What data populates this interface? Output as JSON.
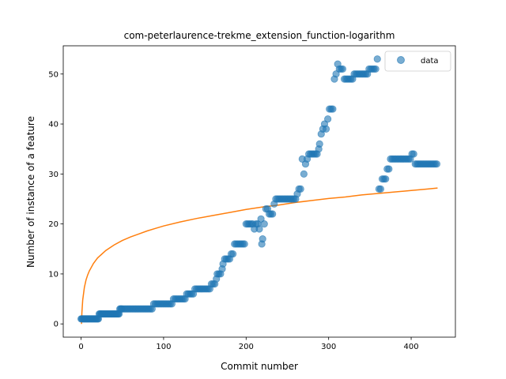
{
  "chart_data": {
    "type": "scatter",
    "title": "com-peterlaurence-trekme_extension_function-logarithm",
    "xlabel": "Commit number",
    "ylabel": "Number of instance of a feature",
    "xlim": [
      -21.6,
      453.6
    ],
    "ylim": [
      -2.65,
      55.65
    ],
    "xticks": [
      0,
      100,
      200,
      300,
      400
    ],
    "yticks": [
      0,
      10,
      20,
      30,
      40,
      50
    ],
    "legend": {
      "position": "top-right",
      "entries": [
        "data"
      ]
    },
    "colors": {
      "data": "#1f77b4",
      "fit": "#ff7f0e"
    },
    "series": [
      {
        "name": "data",
        "kind": "scatter",
        "segments": [
          [
            0,
            1
          ],
          [
            1,
            1
          ],
          [
            2,
            1
          ],
          [
            3,
            1
          ],
          [
            4,
            1
          ],
          [
            5,
            1
          ],
          [
            6,
            1
          ],
          [
            7,
            1
          ],
          [
            8,
            1
          ],
          [
            9,
            1
          ],
          [
            10,
            1
          ],
          [
            11,
            1
          ],
          [
            12,
            1
          ],
          [
            13,
            1
          ],
          [
            14,
            1
          ],
          [
            15,
            1
          ],
          [
            16,
            1
          ],
          [
            17,
            1
          ],
          [
            18,
            1
          ],
          [
            19,
            1
          ],
          [
            20,
            1
          ],
          [
            21,
            1
          ],
          [
            22,
            2
          ],
          [
            23,
            2
          ],
          [
            24,
            2
          ],
          [
            25,
            2
          ],
          [
            26,
            2
          ],
          [
            27,
            2
          ],
          [
            28,
            2
          ],
          [
            29,
            2
          ],
          [
            30,
            2
          ],
          [
            31,
            2
          ],
          [
            32,
            2
          ],
          [
            33,
            2
          ],
          [
            34,
            2
          ],
          [
            35,
            2
          ],
          [
            36,
            2
          ],
          [
            37,
            2
          ],
          [
            38,
            2
          ],
          [
            39,
            2
          ],
          [
            40,
            2
          ],
          [
            41,
            2
          ],
          [
            42,
            2
          ],
          [
            43,
            2
          ],
          [
            44,
            2
          ],
          [
            45,
            2
          ],
          [
            46,
            2
          ],
          [
            47,
            3
          ],
          [
            48,
            3
          ],
          [
            49,
            3
          ],
          [
            50,
            3
          ],
          [
            52,
            3
          ],
          [
            54,
            3
          ],
          [
            56,
            3
          ],
          [
            58,
            3
          ],
          [
            60,
            3
          ],
          [
            62,
            3
          ],
          [
            64,
            3
          ],
          [
            66,
            3
          ],
          [
            68,
            3
          ],
          [
            70,
            3
          ],
          [
            72,
            3
          ],
          [
            74,
            3
          ],
          [
            76,
            3
          ],
          [
            78,
            3
          ],
          [
            80,
            3
          ],
          [
            82,
            3
          ],
          [
            84,
            3
          ],
          [
            86,
            3
          ],
          [
            88,
            4
          ],
          [
            90,
            4
          ],
          [
            92,
            4
          ],
          [
            94,
            4
          ],
          [
            96,
            4
          ],
          [
            98,
            4
          ],
          [
            100,
            4
          ],
          [
            102,
            4
          ],
          [
            104,
            4
          ],
          [
            106,
            4
          ],
          [
            108,
            4
          ],
          [
            110,
            4
          ],
          [
            112,
            5
          ],
          [
            114,
            5
          ],
          [
            116,
            5
          ],
          [
            118,
            5
          ],
          [
            120,
            5
          ],
          [
            122,
            5
          ],
          [
            124,
            5
          ],
          [
            126,
            5
          ],
          [
            128,
            6
          ],
          [
            130,
            6
          ],
          [
            132,
            6
          ],
          [
            134,
            6
          ],
          [
            136,
            6
          ],
          [
            138,
            7
          ],
          [
            140,
            7
          ],
          [
            142,
            7
          ],
          [
            144,
            7
          ],
          [
            146,
            7
          ],
          [
            148,
            7
          ],
          [
            150,
            7
          ],
          [
            152,
            7
          ],
          [
            154,
            7
          ],
          [
            156,
            7
          ],
          [
            158,
            8
          ],
          [
            160,
            8
          ],
          [
            162,
            8
          ],
          [
            164,
            9
          ],
          [
            165,
            10
          ],
          [
            167,
            10
          ],
          [
            169,
            10
          ],
          [
            171,
            11
          ],
          [
            172,
            12
          ],
          [
            174,
            13
          ],
          [
            176,
            13
          ],
          [
            178,
            13
          ],
          [
            180,
            13
          ],
          [
            182,
            14
          ],
          [
            184,
            14
          ],
          [
            186,
            16
          ],
          [
            188,
            16
          ],
          [
            190,
            16
          ],
          [
            192,
            16
          ],
          [
            194,
            16
          ],
          [
            196,
            16
          ],
          [
            198,
            16
          ],
          [
            200,
            20
          ],
          [
            202,
            20
          ],
          [
            204,
            20
          ],
          [
            206,
            20
          ],
          [
            208,
            20
          ],
          [
            210,
            19
          ],
          [
            212,
            20
          ],
          [
            214,
            20
          ],
          [
            216,
            19
          ],
          [
            218,
            21
          ],
          [
            219,
            16
          ],
          [
            220,
            17
          ],
          [
            222,
            20
          ],
          [
            224,
            23
          ],
          [
            226,
            23
          ],
          [
            228,
            22
          ],
          [
            230,
            22
          ],
          [
            232,
            22
          ],
          [
            234,
            24
          ],
          [
            236,
            25
          ],
          [
            238,
            25
          ],
          [
            240,
            25
          ],
          [
            242,
            25
          ],
          [
            244,
            25
          ],
          [
            246,
            25
          ],
          [
            248,
            25
          ],
          [
            250,
            25
          ],
          [
            252,
            25
          ],
          [
            254,
            25
          ],
          [
            256,
            25
          ],
          [
            258,
            25
          ],
          [
            260,
            25
          ],
          [
            262,
            26
          ],
          [
            264,
            27
          ],
          [
            266,
            27
          ],
          [
            268,
            33
          ],
          [
            270,
            30
          ],
          [
            272,
            32
          ],
          [
            274,
            33
          ],
          [
            276,
            34
          ],
          [
            278,
            34
          ],
          [
            280,
            34
          ],
          [
            282,
            34
          ],
          [
            284,
            34
          ],
          [
            286,
            34
          ],
          [
            288,
            35
          ],
          [
            289,
            36
          ],
          [
            291,
            38
          ],
          [
            293,
            39
          ],
          [
            295,
            40
          ],
          [
            297,
            39
          ],
          [
            299,
            41
          ],
          [
            301,
            43
          ],
          [
            303,
            43
          ],
          [
            305,
            43
          ],
          [
            307,
            49
          ],
          [
            309,
            50
          ],
          [
            311,
            52
          ],
          [
            313,
            51
          ],
          [
            315,
            51
          ],
          [
            317,
            51
          ],
          [
            319,
            49
          ],
          [
            321,
            49
          ],
          [
            323,
            49
          ],
          [
            325,
            49
          ],
          [
            327,
            49
          ],
          [
            329,
            49
          ],
          [
            331,
            50
          ],
          [
            333,
            50
          ],
          [
            335,
            50
          ],
          [
            337,
            50
          ],
          [
            339,
            50
          ],
          [
            341,
            50
          ],
          [
            343,
            50
          ],
          [
            345,
            50
          ],
          [
            347,
            50
          ],
          [
            349,
            51
          ],
          [
            351,
            51
          ],
          [
            353,
            51
          ],
          [
            355,
            51
          ],
          [
            357,
            51
          ],
          [
            359,
            53
          ],
          [
            361,
            27
          ],
          [
            363,
            27
          ],
          [
            365,
            29
          ],
          [
            367,
            29
          ],
          [
            369,
            29
          ],
          [
            371,
            31
          ],
          [
            373,
            31
          ],
          [
            375,
            33
          ],
          [
            377,
            33
          ],
          [
            379,
            33
          ],
          [
            381,
            33
          ],
          [
            383,
            33
          ],
          [
            385,
            33
          ],
          [
            387,
            33
          ],
          [
            389,
            33
          ],
          [
            391,
            33
          ],
          [
            393,
            33
          ],
          [
            395,
            33
          ],
          [
            397,
            33
          ],
          [
            399,
            33
          ],
          [
            401,
            34
          ],
          [
            403,
            34
          ],
          [
            405,
            32
          ],
          [
            407,
            32
          ],
          [
            409,
            32
          ],
          [
            411,
            32
          ],
          [
            413,
            32
          ],
          [
            415,
            32
          ],
          [
            417,
            32
          ],
          [
            419,
            32
          ],
          [
            421,
            32
          ],
          [
            423,
            32
          ],
          [
            425,
            32
          ],
          [
            427,
            32
          ],
          [
            429,
            32
          ],
          [
            431,
            32
          ]
        ]
      },
      {
        "kind": "line",
        "points": [
          [
            0.5,
            0
          ],
          [
            1,
            2.3
          ],
          [
            2,
            4.8
          ],
          [
            4,
            7.3
          ],
          [
            6,
            8.8
          ],
          [
            8,
            9.8
          ],
          [
            10,
            10.6
          ],
          [
            15,
            12.1
          ],
          [
            20,
            13.2
          ],
          [
            30,
            14.7
          ],
          [
            40,
            15.8
          ],
          [
            50,
            16.7
          ],
          [
            60,
            17.4
          ],
          [
            70,
            18.0
          ],
          [
            80,
            18.6
          ],
          [
            90,
            19.1
          ],
          [
            100,
            19.6
          ],
          [
            120,
            20.4
          ],
          [
            140,
            21.1
          ],
          [
            160,
            21.7
          ],
          [
            180,
            22.3
          ],
          [
            200,
            22.9
          ],
          [
            220,
            23.4
          ],
          [
            240,
            23.8
          ],
          [
            260,
            24.3
          ],
          [
            280,
            24.7
          ],
          [
            300,
            25.1
          ],
          [
            320,
            25.4
          ],
          [
            340,
            25.8
          ],
          [
            360,
            26.1
          ],
          [
            380,
            26.4
          ],
          [
            400,
            26.7
          ],
          [
            420,
            27.0
          ],
          [
            432,
            27.2
          ]
        ]
      }
    ]
  }
}
